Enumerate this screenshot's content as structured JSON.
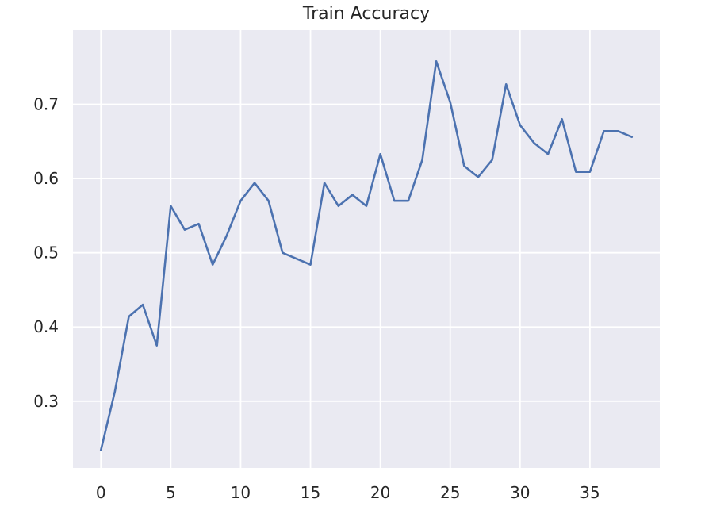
{
  "chart_data": {
    "type": "line",
    "title": "Train Accuracy",
    "xlabel": "",
    "ylabel": "",
    "xlim": [
      -2,
      40
    ],
    "ylim": [
      0.21,
      0.8
    ],
    "xticks": [
      0,
      5,
      10,
      15,
      20,
      25,
      30,
      35
    ],
    "yticks": [
      0.3,
      0.4,
      0.5,
      0.6,
      0.7
    ],
    "grid": true,
    "colors": {
      "background": "#eaeaf2",
      "grid": "#ffffff",
      "line": "#4c72b0",
      "text": "#262626"
    },
    "series": [
      {
        "x": [
          0,
          1,
          2,
          3,
          4,
          5,
          6,
          7,
          8,
          9,
          10,
          11,
          12,
          13,
          14,
          15,
          16,
          17,
          18,
          19,
          20,
          21,
          22,
          23,
          24,
          25,
          26,
          27,
          28,
          29,
          30,
          31,
          32,
          33,
          34,
          35,
          36,
          37,
          38
        ],
        "values": [
          0.234,
          0.313,
          0.414,
          0.43,
          0.375,
          0.563,
          0.531,
          0.539,
          0.484,
          0.523,
          0.57,
          0.594,
          0.57,
          0.5,
          0.492,
          0.484,
          0.594,
          0.563,
          0.578,
          0.563,
          0.633,
          0.57,
          0.57,
          0.625,
          0.758,
          0.703,
          0.617,
          0.602,
          0.625,
          0.727,
          0.672,
          0.648,
          0.633,
          0.68,
          0.609,
          0.609,
          0.664,
          0.664,
          0.656
        ]
      }
    ]
  }
}
